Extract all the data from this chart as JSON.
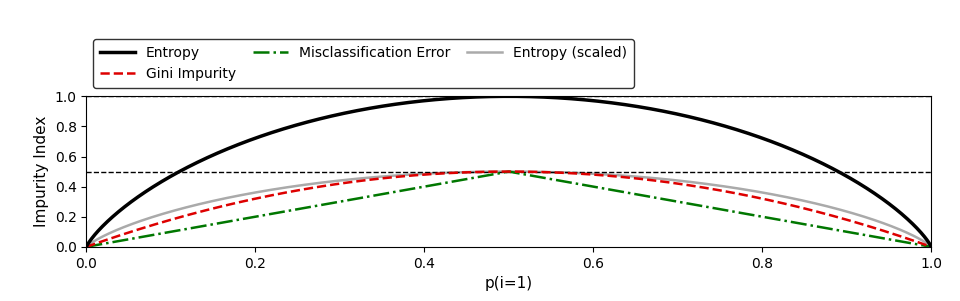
{
  "title": "",
  "xlabel": "p(i=1)",
  "ylabel": "Impurity Index",
  "xlim": [
    0.0,
    1.0
  ],
  "ylim": [
    0.0,
    1.0
  ],
  "xticks": [
    0.0,
    0.2,
    0.4,
    0.6,
    0.8,
    1.0
  ],
  "yticks": [
    0.0,
    0.2,
    0.4,
    0.6,
    0.8,
    1.0
  ],
  "hlines": [
    1.0,
    0.5
  ],
  "entropy_color": "#000000",
  "entropy_scaled_color": "#aaaaaa",
  "gini_color": "#dd0000",
  "misclass_color": "#007700",
  "entropy_lw": 2.5,
  "entropy_scaled_lw": 1.8,
  "gini_lw": 1.8,
  "misclass_lw": 1.8,
  "legend_ncol": 3,
  "figsize": [
    9.6,
    3.01
  ],
  "dpi": 100,
  "xlabel_fontsize": 11,
  "ylabel_fontsize": 11,
  "tick_fontsize": 10,
  "legend_fontsize": 10
}
